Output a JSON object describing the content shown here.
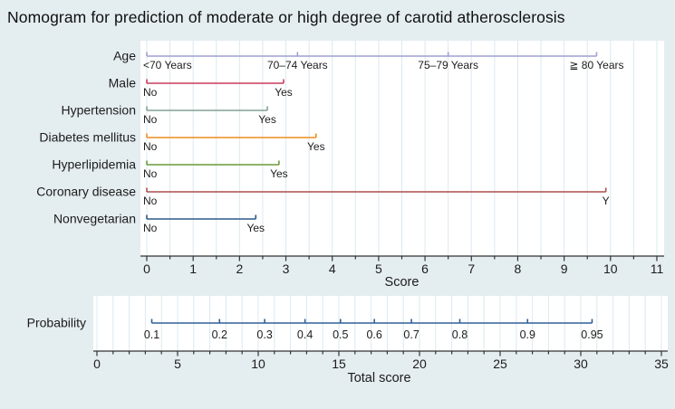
{
  "colors": {
    "background": "#e4edf0",
    "plot_bg": "#ffffff",
    "grid": "#dce9f0",
    "axis": "#333333",
    "text": "#1c1c1c"
  },
  "chart_data": {
    "type": "nomogram",
    "title": "Nomogram for prediction of moderate or high degree of carotid atherosclerosis",
    "top_chart": {
      "axis": {
        "label": "Score",
        "min": 0,
        "max": 11,
        "major_step": 1,
        "minor_step": 0.5,
        "tick_labels": [
          "0",
          "1",
          "2",
          "3",
          "4",
          "5",
          "6",
          "7",
          "8",
          "9",
          "10",
          "11"
        ],
        "grid": true
      },
      "rows": [
        {
          "label": "Age",
          "color": "#9e9ed6",
          "points": [
            {
              "score": 0,
              "label": "<70 Years",
              "align": "start"
            },
            {
              "score": 3.25,
              "label": "70–74 Years"
            },
            {
              "score": 6.5,
              "label": "75–79 Years"
            },
            {
              "score": 9.7,
              "label": "≧ 80 Years"
            }
          ]
        },
        {
          "label": "Male",
          "color": "#c93a5b",
          "points": [
            {
              "score": 0,
              "label": "No",
              "align": "start"
            },
            {
              "score": 2.95,
              "label": "Yes"
            }
          ]
        },
        {
          "label": "Hypertension",
          "color": "#83a295",
          "points": [
            {
              "score": 0,
              "label": "No",
              "align": "start"
            },
            {
              "score": 2.6,
              "label": "Yes"
            }
          ]
        },
        {
          "label": "Diabetes mellitus",
          "color": "#ef8c20",
          "points": [
            {
              "score": 0,
              "label": "No",
              "align": "start"
            },
            {
              "score": 3.65,
              "label": "Yes"
            }
          ]
        },
        {
          "label": "Hyperlipidemia",
          "color": "#689b3a",
          "points": [
            {
              "score": 0,
              "label": "No",
              "align": "start"
            },
            {
              "score": 2.85,
              "label": "Yes"
            }
          ]
        },
        {
          "label": "Coronary disease",
          "color": "#ad4e4e",
          "points": [
            {
              "score": 0,
              "label": "No",
              "align": "start"
            },
            {
              "score": 9.9,
              "label": "Y"
            }
          ]
        },
        {
          "label": "Nonvegetarian",
          "color": "#2b5a88",
          "points": [
            {
              "score": 0,
              "label": "No",
              "align": "start"
            },
            {
              "score": 2.35,
              "label": "Yes"
            }
          ]
        }
      ]
    },
    "bottom_chart": {
      "axis": {
        "label": "Total score",
        "min": 0,
        "max": 35,
        "major_step": 5,
        "minor_step": 1,
        "tick_labels": [
          "0",
          "5",
          "10",
          "15",
          "20",
          "25",
          "30",
          "35"
        ],
        "grid": true
      },
      "row": {
        "label": "Probability",
        "color": "#2f609a",
        "points": [
          {
            "total_score": 3.4,
            "label": "0.1"
          },
          {
            "total_score": 7.6,
            "label": "0.2"
          },
          {
            "total_score": 10.4,
            "label": "0.3"
          },
          {
            "total_score": 12.9,
            "label": "0.4"
          },
          {
            "total_score": 15.1,
            "label": "0.5"
          },
          {
            "total_score": 17.2,
            "label": "0.6"
          },
          {
            "total_score": 19.5,
            "label": "0.7"
          },
          {
            "total_score": 22.5,
            "label": "0.8"
          },
          {
            "total_score": 26.7,
            "label": "0.9"
          },
          {
            "total_score": 30.7,
            "label": "0.95"
          }
        ]
      }
    }
  }
}
